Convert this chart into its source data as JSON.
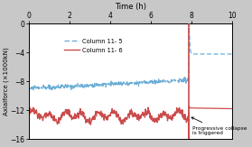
{
  "title": "",
  "xlabel": "Time (h)",
  "ylabel": "Axialforce (×1000kN)",
  "xlim": [
    0,
    10
  ],
  "ylim": [
    -16,
    0
  ],
  "xticks": [
    0,
    2,
    4,
    6,
    8,
    10
  ],
  "yticks": [
    0,
    -4,
    -8,
    -12,
    -16
  ],
  "col11_5_color": "#6baed6",
  "col11_6_color": "#cb4c4c",
  "col11_5_label": "Column 11- 5",
  "col11_6_label": "Column 11- 6",
  "annotation": "Progressive collapse\nis triggered",
  "collapse_time": 7.85,
  "background_color": "#c8c8c8",
  "plot_background": "#ffffff"
}
